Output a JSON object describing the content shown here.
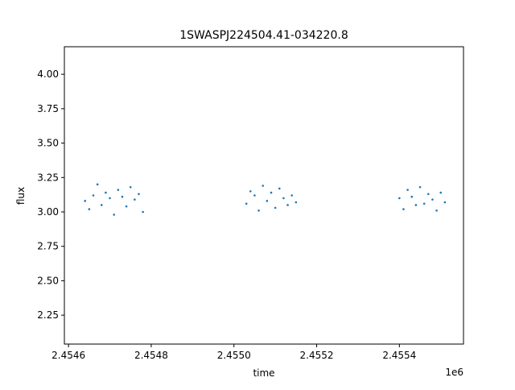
{
  "chart_data": {
    "type": "scatter",
    "title": "1SWASPJ224504.41-034220.8",
    "xlabel": "time",
    "ylabel": "flux",
    "x_offset_label": "1e6",
    "xlim": [
      2.45459,
      2.455555
    ],
    "ylim": [
      2.04,
      4.2
    ],
    "x_ticks": [
      2.4546,
      2.4548,
      2.455,
      2.4552,
      2.4554
    ],
    "x_tick_labels": [
      "2.4546",
      "2.4548",
      "2.4550",
      "2.4552",
      "2.4554"
    ],
    "y_ticks": [
      2.25,
      2.5,
      2.75,
      3.0,
      3.25,
      3.5,
      3.75,
      4.0
    ],
    "y_tick_labels": [
      "2.25",
      "2.50",
      "2.75",
      "3.00",
      "3.25",
      "3.50",
      "3.75",
      "4.00"
    ],
    "grid": false,
    "marker_color": "#1f77b4",
    "series": [
      {
        "x": [
          2.45464,
          2.45465,
          2.45466,
          2.45467,
          2.45468,
          2.45469,
          2.4547,
          2.45471,
          2.45472,
          2.45473,
          2.45474,
          2.45475,
          2.45476,
          2.45477,
          2.45478,
          2.45503,
          2.45504,
          2.45505,
          2.45506,
          2.45507,
          2.45508,
          2.45509,
          2.4551,
          2.45511,
          2.45512,
          2.45513,
          2.45514,
          2.45515,
          2.4554,
          2.45541,
          2.45542,
          2.45543,
          2.45544,
          2.45545,
          2.45546,
          2.45547,
          2.45548,
          2.45549,
          2.4555,
          2.45551
        ],
        "y": [
          3.08,
          3.02,
          3.12,
          3.2,
          3.05,
          3.14,
          3.1,
          2.98,
          3.16,
          3.11,
          3.04,
          3.18,
          3.09,
          3.13,
          3.0,
          3.06,
          3.15,
          3.12,
          3.01,
          3.19,
          3.08,
          3.14,
          3.03,
          3.17,
          3.1,
          3.05,
          3.12,
          3.07,
          3.1,
          3.02,
          3.16,
          3.11,
          3.05,
          3.18,
          3.06,
          3.13,
          3.09,
          3.01,
          3.14,
          3.07
        ]
      }
    ]
  }
}
